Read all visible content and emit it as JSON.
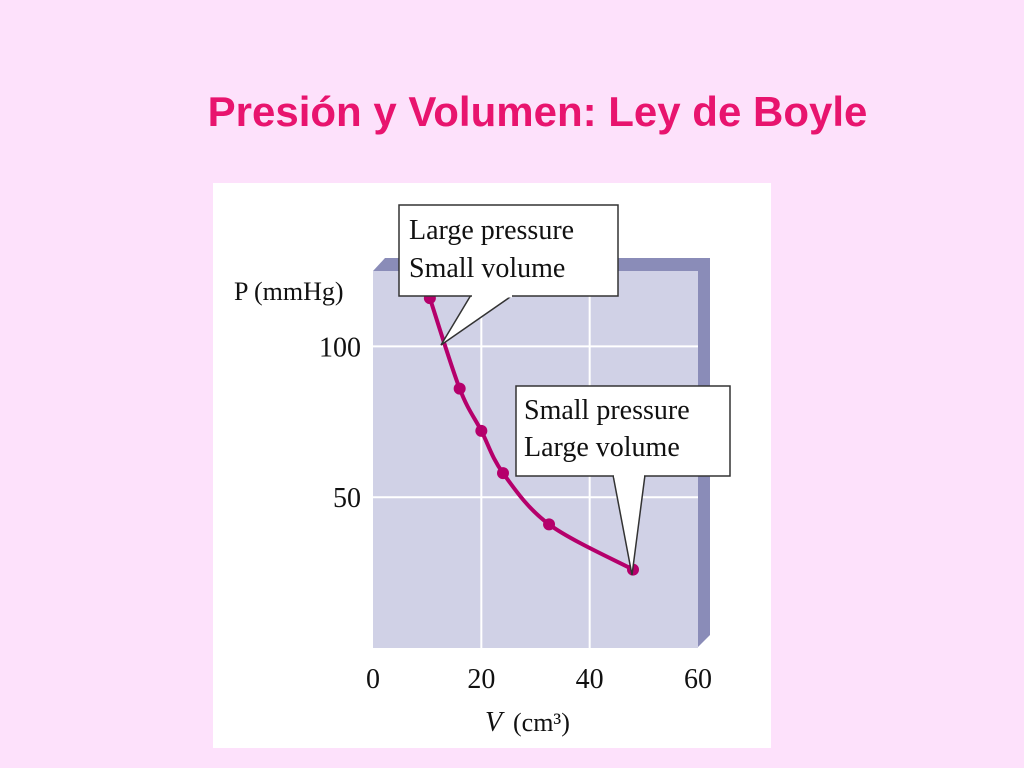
{
  "slide": {
    "title": "Presión y Volumen: Ley de Boyle"
  },
  "colors": {
    "background": "#fde1fb",
    "title": "#e8146e",
    "plot_area": "#d0d1e6",
    "plot_side": "#8a8cb8",
    "curve": "#b5006b"
  },
  "chart_data": {
    "type": "line",
    "xlabel": "V",
    "xlabel_unit": "(cm³)",
    "ylabel": "P (mmHg)",
    "xlim": [
      0,
      60
    ],
    "ylim": [
      0,
      125
    ],
    "x_ticks": [
      "0",
      "20",
      "40",
      "60"
    ],
    "x_tick_values": [
      0,
      20,
      40,
      60
    ],
    "y_ticks": [
      "50",
      "100"
    ],
    "y_tick_values": [
      50,
      100
    ],
    "grid": true,
    "series": [
      {
        "x": [
          10.5,
          16,
          20,
          24,
          32.5,
          48
        ],
        "y": [
          116,
          86,
          72,
          58,
          41,
          26
        ]
      }
    ],
    "annotations": [
      {
        "lines": [
          "Large pressure",
          "Small volume"
        ],
        "points_to": [
          10.5,
          116
        ]
      },
      {
        "lines": [
          "Small pressure",
          "Large volume"
        ],
        "points_to": [
          48,
          26
        ]
      }
    ]
  }
}
